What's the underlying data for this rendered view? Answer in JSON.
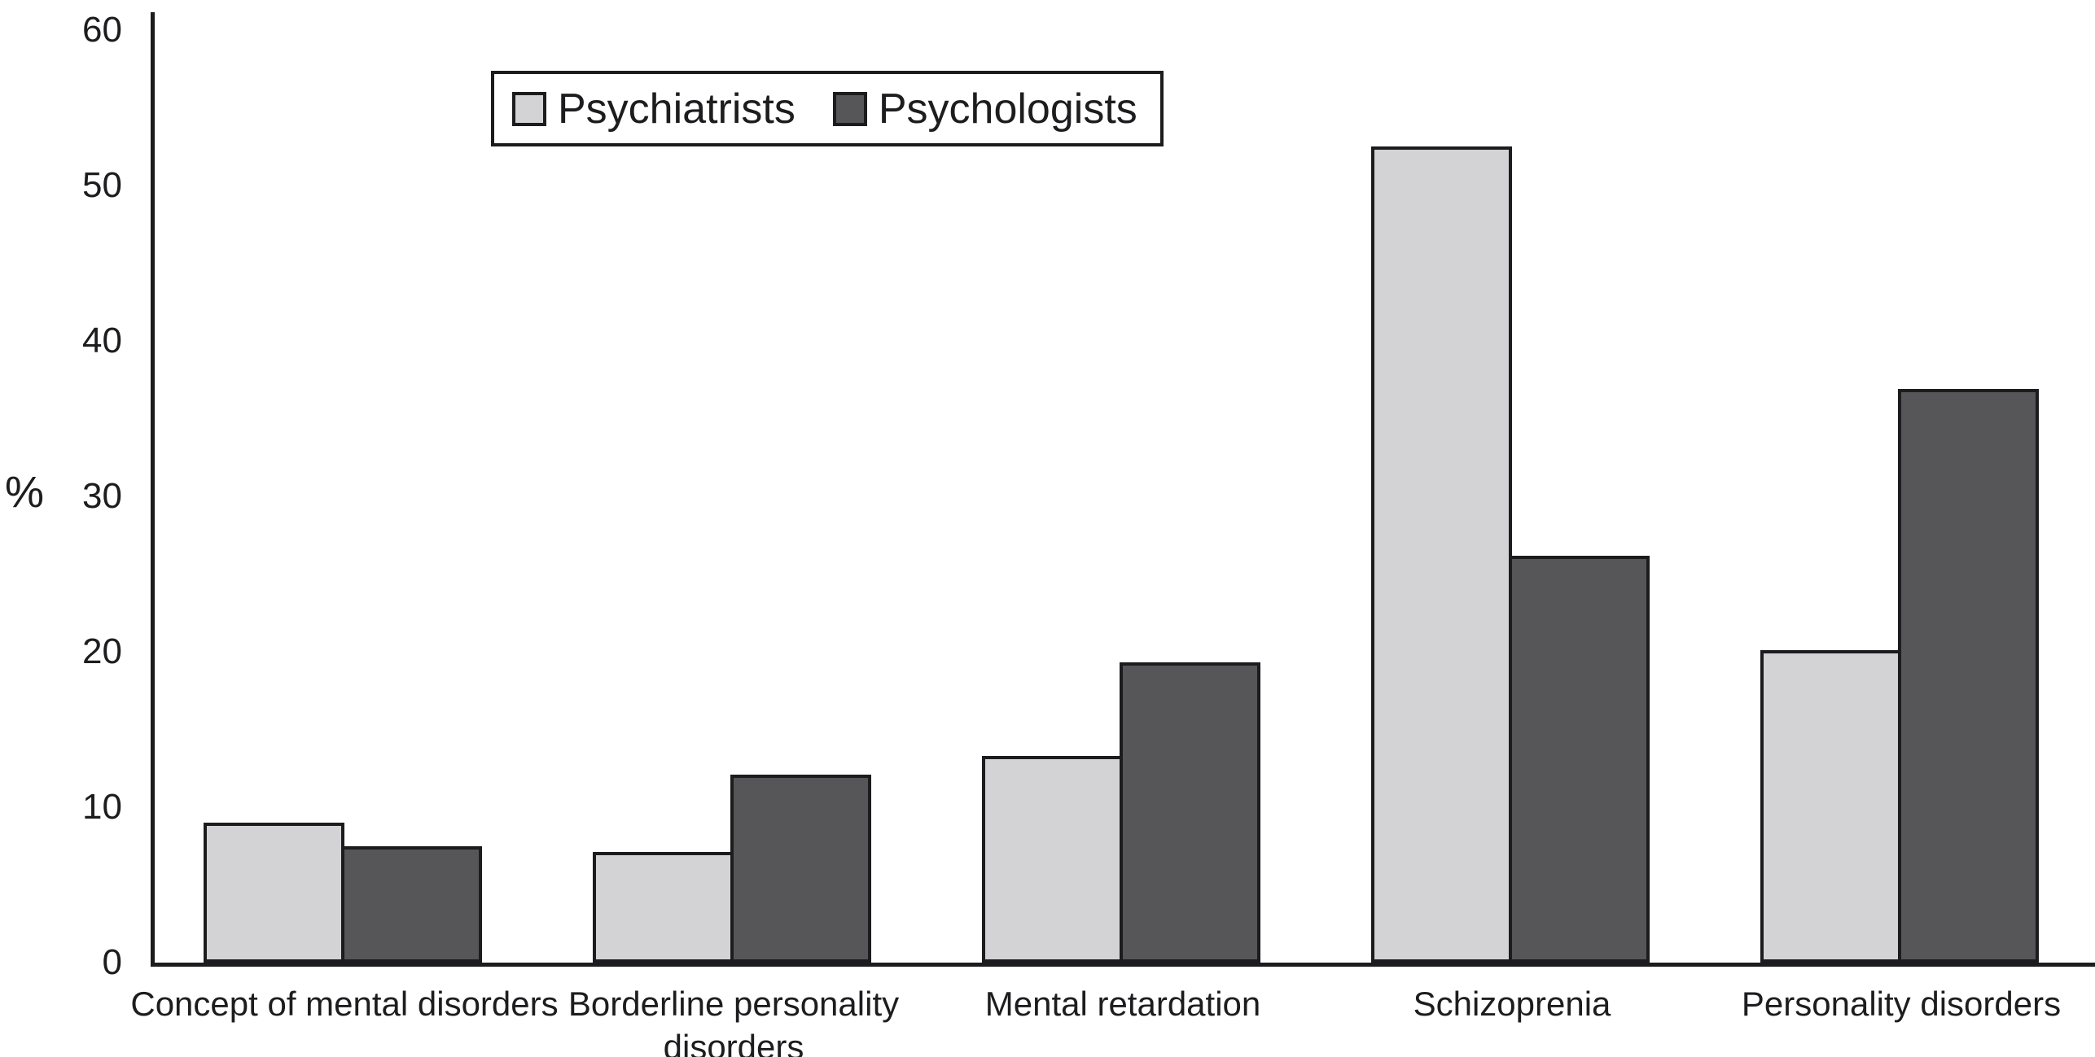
{
  "chart_data": {
    "type": "bar",
    "title": "",
    "xlabel": "",
    "ylabel": "%",
    "categories": [
      "Concept of mental disorders",
      "Borderline personality disorders",
      "Mental retardation",
      "Schizoprenia",
      "Personality disorders"
    ],
    "series": [
      {
        "name": "Psychiatrists",
        "values": [
          9.0,
          7.1,
          13.3,
          52.5,
          20.1
        ],
        "color": "#d3d3d5"
      },
      {
        "name": "Psychologists",
        "values": [
          7.5,
          12.1,
          19.3,
          26.2,
          36.9
        ],
        "color": "#565659"
      }
    ],
    "ylim": [
      0,
      60
    ],
    "yticks": [
      0,
      10,
      20,
      30,
      40,
      50,
      60
    ],
    "grid": false,
    "legend_position": "top-left-inside",
    "bar_border_color": "#1c1c1e",
    "axis_color": "#1c1c1e",
    "text_color": "#1d1d1f",
    "background": "#ffffff"
  }
}
